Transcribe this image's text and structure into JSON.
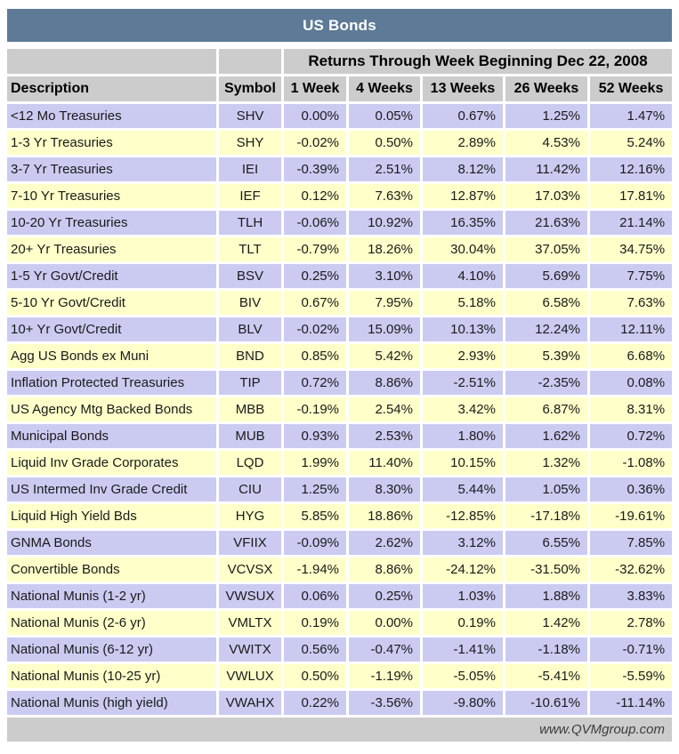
{
  "colors": {
    "title_bg": "#5D7A96",
    "title_text": "#FFFFFF",
    "header_bg": "#CCCCCC",
    "row_lavender": "#CBCBF2",
    "row_yellow": "#FFFFC9",
    "footer_bg": "#CCCCCC"
  },
  "footer": {
    "site": "www.QVMgroup.com"
  },
  "chart_data": {
    "type": "table",
    "title": "US Bonds",
    "subtitle": "Returns Through Week Beginning Dec 22, 2008",
    "columns": [
      "Description",
      "Symbol",
      "1 Week",
      "4 Weeks",
      "13 Weeks",
      "26 Weeks",
      "52 Weeks"
    ],
    "rows": [
      {
        "description": "<12 Mo Treasuries",
        "symbol": "SHV",
        "returns": [
          "0.00%",
          "0.05%",
          "0.67%",
          "1.25%",
          "1.47%"
        ]
      },
      {
        "description": "1-3 Yr Treasuries",
        "symbol": "SHY",
        "returns": [
          "-0.02%",
          "0.50%",
          "2.89%",
          "4.53%",
          "5.24%"
        ]
      },
      {
        "description": "3-7 Yr Treasuries",
        "symbol": "IEI",
        "returns": [
          "-0.39%",
          "2.51%",
          "8.12%",
          "11.42%",
          "12.16%"
        ]
      },
      {
        "description": "7-10 Yr Treasuries",
        "symbol": "IEF",
        "returns": [
          "0.12%",
          "7.63%",
          "12.87%",
          "17.03%",
          "17.81%"
        ]
      },
      {
        "description": "10-20 Yr Treasuries",
        "symbol": "TLH",
        "returns": [
          "-0.06%",
          "10.92%",
          "16.35%",
          "21.63%",
          "21.14%"
        ]
      },
      {
        "description": "20+ Yr Treasuries",
        "symbol": "TLT",
        "returns": [
          "-0.79%",
          "18.26%",
          "30.04%",
          "37.05%",
          "34.75%"
        ]
      },
      {
        "description": "1-5 Yr Govt/Credit",
        "symbol": "BSV",
        "returns": [
          "0.25%",
          "3.10%",
          "4.10%",
          "5.69%",
          "7.75%"
        ]
      },
      {
        "description": "5-10 Yr Govt/Credit",
        "symbol": "BIV",
        "returns": [
          "0.67%",
          "7.95%",
          "5.18%",
          "6.58%",
          "7.63%"
        ]
      },
      {
        "description": "10+ Yr Govt/Credit",
        "symbol": "BLV",
        "returns": [
          "-0.02%",
          "15.09%",
          "10.13%",
          "12.24%",
          "12.11%"
        ]
      },
      {
        "description": "Agg US Bonds ex Muni",
        "symbol": "BND",
        "returns": [
          "0.85%",
          "5.42%",
          "2.93%",
          "5.39%",
          "6.68%"
        ]
      },
      {
        "description": "Inflation Protected Treasuries",
        "symbol": "TIP",
        "returns": [
          "0.72%",
          "8.86%",
          "-2.51%",
          "-2.35%",
          "0.08%"
        ]
      },
      {
        "description": "US Agency Mtg Backed Bonds",
        "symbol": "MBB",
        "returns": [
          "-0.19%",
          "2.54%",
          "3.42%",
          "6.87%",
          "8.31%"
        ]
      },
      {
        "description": "Municipal Bonds",
        "symbol": "MUB",
        "returns": [
          "0.93%",
          "2.53%",
          "1.80%",
          "1.62%",
          "0.72%"
        ]
      },
      {
        "description": "Liquid Inv Grade Corporates",
        "symbol": "LQD",
        "returns": [
          "1.99%",
          "11.40%",
          "10.15%",
          "1.32%",
          "-1.08%"
        ]
      },
      {
        "description": "US Intermed Inv Grade Credit",
        "symbol": "CIU",
        "returns": [
          "1.25%",
          "8.30%",
          "5.44%",
          "1.05%",
          "0.36%"
        ]
      },
      {
        "description": "Liquid High Yield Bds",
        "symbol": "HYG",
        "returns": [
          "5.85%",
          "18.86%",
          "-12.85%",
          "-17.18%",
          "-19.61%"
        ]
      },
      {
        "description": "GNMA Bonds",
        "symbol": "VFIIX",
        "returns": [
          "-0.09%",
          "2.62%",
          "3.12%",
          "6.55%",
          "7.85%"
        ]
      },
      {
        "description": "Convertible Bonds",
        "symbol": "VCVSX",
        "returns": [
          "-1.94%",
          "8.86%",
          "-24.12%",
          "-31.50%",
          "-32.62%"
        ]
      },
      {
        "description": "National Munis (1-2 yr)",
        "symbol": "VWSUX",
        "returns": [
          "0.06%",
          "0.25%",
          "1.03%",
          "1.88%",
          "3.83%"
        ]
      },
      {
        "description": "National Munis (2-6 yr)",
        "symbol": "VMLTX",
        "returns": [
          "0.19%",
          "0.00%",
          "0.19%",
          "1.42%",
          "2.78%"
        ]
      },
      {
        "description": "National Munis (6-12 yr)",
        "symbol": "VWITX",
        "returns": [
          "0.56%",
          "-0.47%",
          "-1.41%",
          "-1.18%",
          "-0.71%"
        ]
      },
      {
        "description": "National Munis (10-25 yr)",
        "symbol": "VWLUX",
        "returns": [
          "0.50%",
          "-1.19%",
          "-5.05%",
          "-5.41%",
          "-5.59%"
        ]
      },
      {
        "description": "National Munis (high yield)",
        "symbol": "VWAHX",
        "returns": [
          "0.22%",
          "-3.56%",
          "-9.80%",
          "-10.61%",
          "-11.14%"
        ]
      }
    ]
  }
}
